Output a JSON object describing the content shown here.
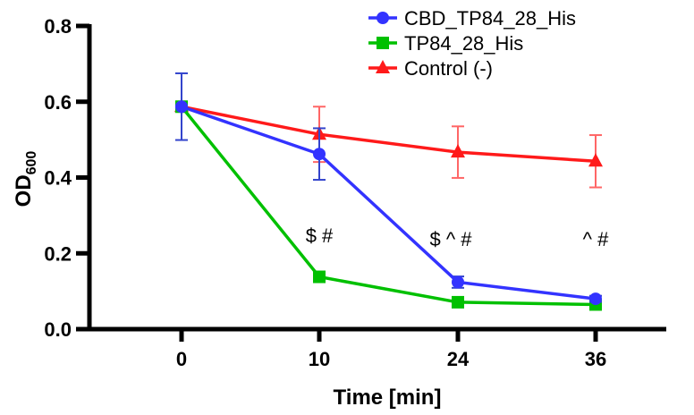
{
  "chart_data": {
    "type": "line",
    "xlabel": "Time [min]",
    "ylabel_main": "OD",
    "ylabel_sub": "600",
    "categories": [
      "0",
      "10",
      "24",
      "36"
    ],
    "ylim": [
      0,
      0.8
    ],
    "yticks": [
      "0.0",
      "0.2",
      "0.4",
      "0.6",
      "0.8"
    ],
    "grid": false,
    "legend_placement": "top",
    "series": [
      {
        "name": "CBD_TP84_28_His",
        "color": "#3333ff",
        "marker": "circle",
        "values": [
          0.587,
          0.462,
          0.124,
          0.08
        ],
        "errors": [
          0.088,
          0.068,
          0.015,
          0.008
        ]
      },
      {
        "name": "TP84_28_His",
        "color": "#00c000",
        "marker": "square",
        "values": [
          0.587,
          0.138,
          0.071,
          0.065
        ],
        "errors": [
          0,
          0,
          0,
          0
        ]
      },
      {
        "name": "Control (-)",
        "color": "#ff1a1a",
        "marker": "triangle",
        "values": [
          0.587,
          0.514,
          0.467,
          0.443
        ],
        "errors": [
          0,
          0.073,
          0.068,
          0.069
        ]
      }
    ],
    "annotations": [
      {
        "category": "10",
        "text": "$ #"
      },
      {
        "category": "24",
        "text": "$ ^ #"
      },
      {
        "category": "36",
        "text": "^ #"
      }
    ]
  }
}
